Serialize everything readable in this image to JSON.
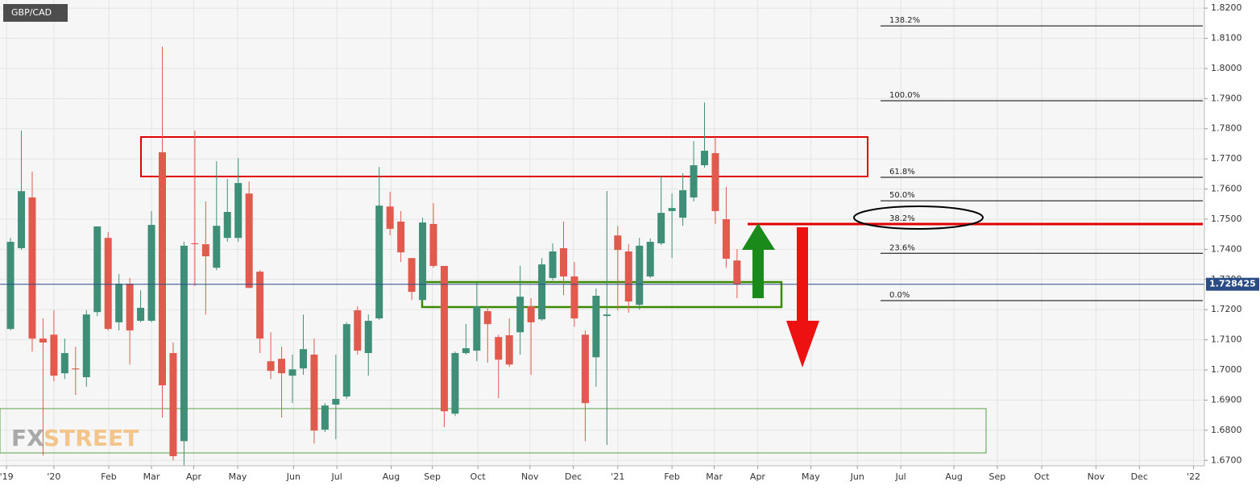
{
  "chart_data": {
    "type": "candlestick",
    "title": "GBP/CAD",
    "watermark": [
      "FX",
      "STREET"
    ],
    "up_color": "#3f8f78",
    "down_color": "#e05b4e",
    "grid": true,
    "open": [
      1.7136,
      1.7404,
      1.7572,
      1.7104,
      1.7117,
      1.6989,
      1.7005,
      1.6976,
      1.7192,
      1.7438,
      1.7158,
      1.7286,
      1.7163,
      1.7163,
      1.7722,
      1.7056,
      1.6764,
      1.742,
      1.7417,
      1.7339,
      1.7438,
      1.7438,
      1.7585,
      1.7326,
      1.7029,
      1.7037,
      1.6981,
      1.7005,
      1.7051,
      1.6802,
      1.6885,
      1.6912,
      1.7198,
      1.7056,
      1.7171,
      1.7542,
      1.7492,
      1.7371,
      1.7232,
      1.7484,
      1.7345,
      1.6855,
      1.7056,
      1.7064,
      1.7195,
      1.7109,
      1.7115,
      1.7125,
      1.7211,
      1.7168,
      1.7305,
      1.7404,
      1.731,
      1.7117,
      1.7042,
      1.7179,
      1.7446,
      1.7393,
      1.7216,
      1.731,
      1.742,
      1.7527,
      1.7505,
      1.7572,
      1.7679,
      1.7719,
      1.75,
      1.7363
    ],
    "high": [
      1.7438,
      1.7794,
      1.7658,
      1.7171,
      1.7198,
      1.7104,
      1.7077,
      1.7198,
      1.7476,
      1.7457,
      1.7318,
      1.7305,
      1.7264,
      1.7527,
      1.8072,
      1.7091,
      1.7425,
      1.7794,
      1.7559,
      1.7692,
      1.7633,
      1.7703,
      1.7625,
      1.7331,
      1.7125,
      1.7077,
      1.7051,
      1.7184,
      1.7104,
      1.689,
      1.7051,
      1.7158,
      1.7211,
      1.7184,
      1.7673,
      1.7591,
      1.7527,
      1.7371,
      1.7505,
      1.7553,
      1.7345,
      1.7061,
      1.7152,
      1.7291,
      1.7211,
      1.7117,
      1.7171,
      1.7345,
      1.7238,
      1.7371,
      1.742,
      1.7492,
      1.7358,
      1.7131,
      1.727,
      1.7593,
      1.7478,
      1.7417,
      1.7438,
      1.7436,
      1.7644,
      1.7585,
      1.7652,
      1.7759,
      1.7887,
      1.7773,
      1.7607,
      1.7401
    ],
    "low": [
      1.7131,
      1.7398,
      1.7061,
      1.6716,
      1.6962,
      1.697,
      1.6917,
      1.6944,
      1.7179,
      1.7131,
      1.7131,
      1.7018,
      1.7158,
      1.7158,
      1.6842,
      1.67,
      1.6682,
      1.7278,
      1.7184,
      1.7331,
      1.7425,
      1.7425,
      1.7272,
      1.7056,
      1.697,
      1.6842,
      1.689,
      1.6984,
      1.6756,
      1.6794,
      1.677,
      1.6904,
      1.7051,
      1.6981,
      1.7166,
      1.7446,
      1.7358,
      1.7232,
      1.7227,
      1.7339,
      1.681,
      1.6847,
      1.7051,
      1.7029,
      1.7024,
      1.6906,
      1.701,
      1.7051,
      1.6984,
      1.7163,
      1.7297,
      1.7248,
      1.7144,
      1.6764,
      1.6944,
      1.6751,
      1.7198,
      1.719,
      1.72,
      1.7305,
      1.7414,
      1.7371,
      1.7478,
      1.7559,
      1.7671,
      1.7484,
      1.7339,
      1.7238
    ],
    "close": [
      1.7425,
      1.7593,
      1.7104,
      1.7091,
      1.6981,
      1.7056,
      1.7002,
      1.7184,
      1.7476,
      1.7136,
      1.7286,
      1.7131,
      1.7206,
      1.7481,
      1.6949,
      1.6714,
      1.7412,
      1.7417,
      1.7377,
      1.7478,
      1.7524,
      1.762,
      1.7272,
      1.7104,
      1.6997,
      1.6989,
      1.7002,
      1.7069,
      1.6799,
      1.6882,
      1.6904,
      1.7152,
      1.7064,
      1.7163,
      1.7545,
      1.7468,
      1.739,
      1.7259,
      1.7489,
      1.7345,
      1.6863,
      1.7056,
      1.7072,
      1.7211,
      1.7152,
      1.7034,
      1.7018,
      1.7243,
      1.7158,
      1.735,
      1.7393,
      1.731,
      1.7171,
      1.689,
      1.7246,
      1.7184,
      1.7398,
      1.7227,
      1.7412,
      1.7425,
      1.7521,
      1.7537,
      1.7596,
      1.7679,
      1.7727,
      1.7527,
      1.7369,
      1.7284
    ],
    "xlim": [
      -0.97,
      110.1
    ],
    "xticks": [
      {
        "value": -0.37,
        "label": "'19"
      },
      {
        "value": 4.0,
        "label": "'20"
      },
      {
        "value": 9.06,
        "label": "Feb"
      },
      {
        "value": 13.0,
        "label": "Mar"
      },
      {
        "value": 16.9,
        "label": "Apr"
      },
      {
        "value": 20.95,
        "label": "May"
      },
      {
        "value": 26.1,
        "label": "Jun"
      },
      {
        "value": 30.1,
        "label": "Jul"
      },
      {
        "value": 35.1,
        "label": "Aug"
      },
      {
        "value": 38.9,
        "label": "Sep"
      },
      {
        "value": 43.1,
        "label": "Oct"
      },
      {
        "value": 47.9,
        "label": "Nov"
      },
      {
        "value": 51.9,
        "label": "Dec"
      },
      {
        "value": 56.0,
        "label": "'21"
      },
      {
        "value": 61.0,
        "label": "Feb"
      },
      {
        "value": 64.9,
        "label": "Mar"
      },
      {
        "value": 68.9,
        "label": "Apr"
      },
      {
        "value": 73.8,
        "label": "May"
      },
      {
        "value": 78.1,
        "label": "Jun"
      },
      {
        "value": 82.1,
        "label": "Jul"
      },
      {
        "value": 87.0,
        "label": "Aug"
      },
      {
        "value": 91.0,
        "label": "Sep"
      },
      {
        "value": 95.1,
        "label": "Oct"
      },
      {
        "value": 100.1,
        "label": "Nov"
      },
      {
        "value": 104.1,
        "label": "Dec"
      },
      {
        "value": 109.1,
        "label": "'22"
      }
    ],
    "ylim": [
      1.6682,
      1.8227
    ],
    "yticks": [
      {
        "value": 1.67,
        "label": "1.6700"
      },
      {
        "value": 1.68,
        "label": "1.6800"
      },
      {
        "value": 1.69,
        "label": "1.6900"
      },
      {
        "value": 1.7,
        "label": "1.7000"
      },
      {
        "value": 1.71,
        "label": "1.7100"
      },
      {
        "value": 1.72,
        "label": "1.7200"
      },
      {
        "value": 1.73,
        "label": "1.7300"
      },
      {
        "value": 1.74,
        "label": "1.7400"
      },
      {
        "value": 1.75,
        "label": "1.7500"
      },
      {
        "value": 1.76,
        "label": "1.7600"
      },
      {
        "value": 1.77,
        "label": "1.7700"
      },
      {
        "value": 1.78,
        "label": "1.7800"
      },
      {
        "value": 1.79,
        "label": "1.7900"
      },
      {
        "value": 1.8,
        "label": "1.8000"
      },
      {
        "value": 1.81,
        "label": "1.8100"
      },
      {
        "value": 1.82,
        "label": "1.8200"
      }
    ],
    "last_price": 1.728425,
    "last_price_color": "#2a4b86",
    "fib_levels": [
      {
        "label": "138.2%",
        "price": 1.8141,
        "color": "#000000"
      },
      {
        "label": "100.0%",
        "price": 1.7893,
        "color": "#000000"
      },
      {
        "label": "61.8%",
        "price": 1.7639,
        "color": "#000000"
      },
      {
        "label": "50.0%",
        "price": 1.7561,
        "color": "#000000"
      },
      {
        "label": "38.2%",
        "price": 1.7484,
        "color": "#e00000"
      },
      {
        "label": "23.6%",
        "price": 1.7387,
        "color": "#000000"
      },
      {
        "label": "0.0%",
        "price": 1.723,
        "color": "#000000"
      }
    ]
  }
}
